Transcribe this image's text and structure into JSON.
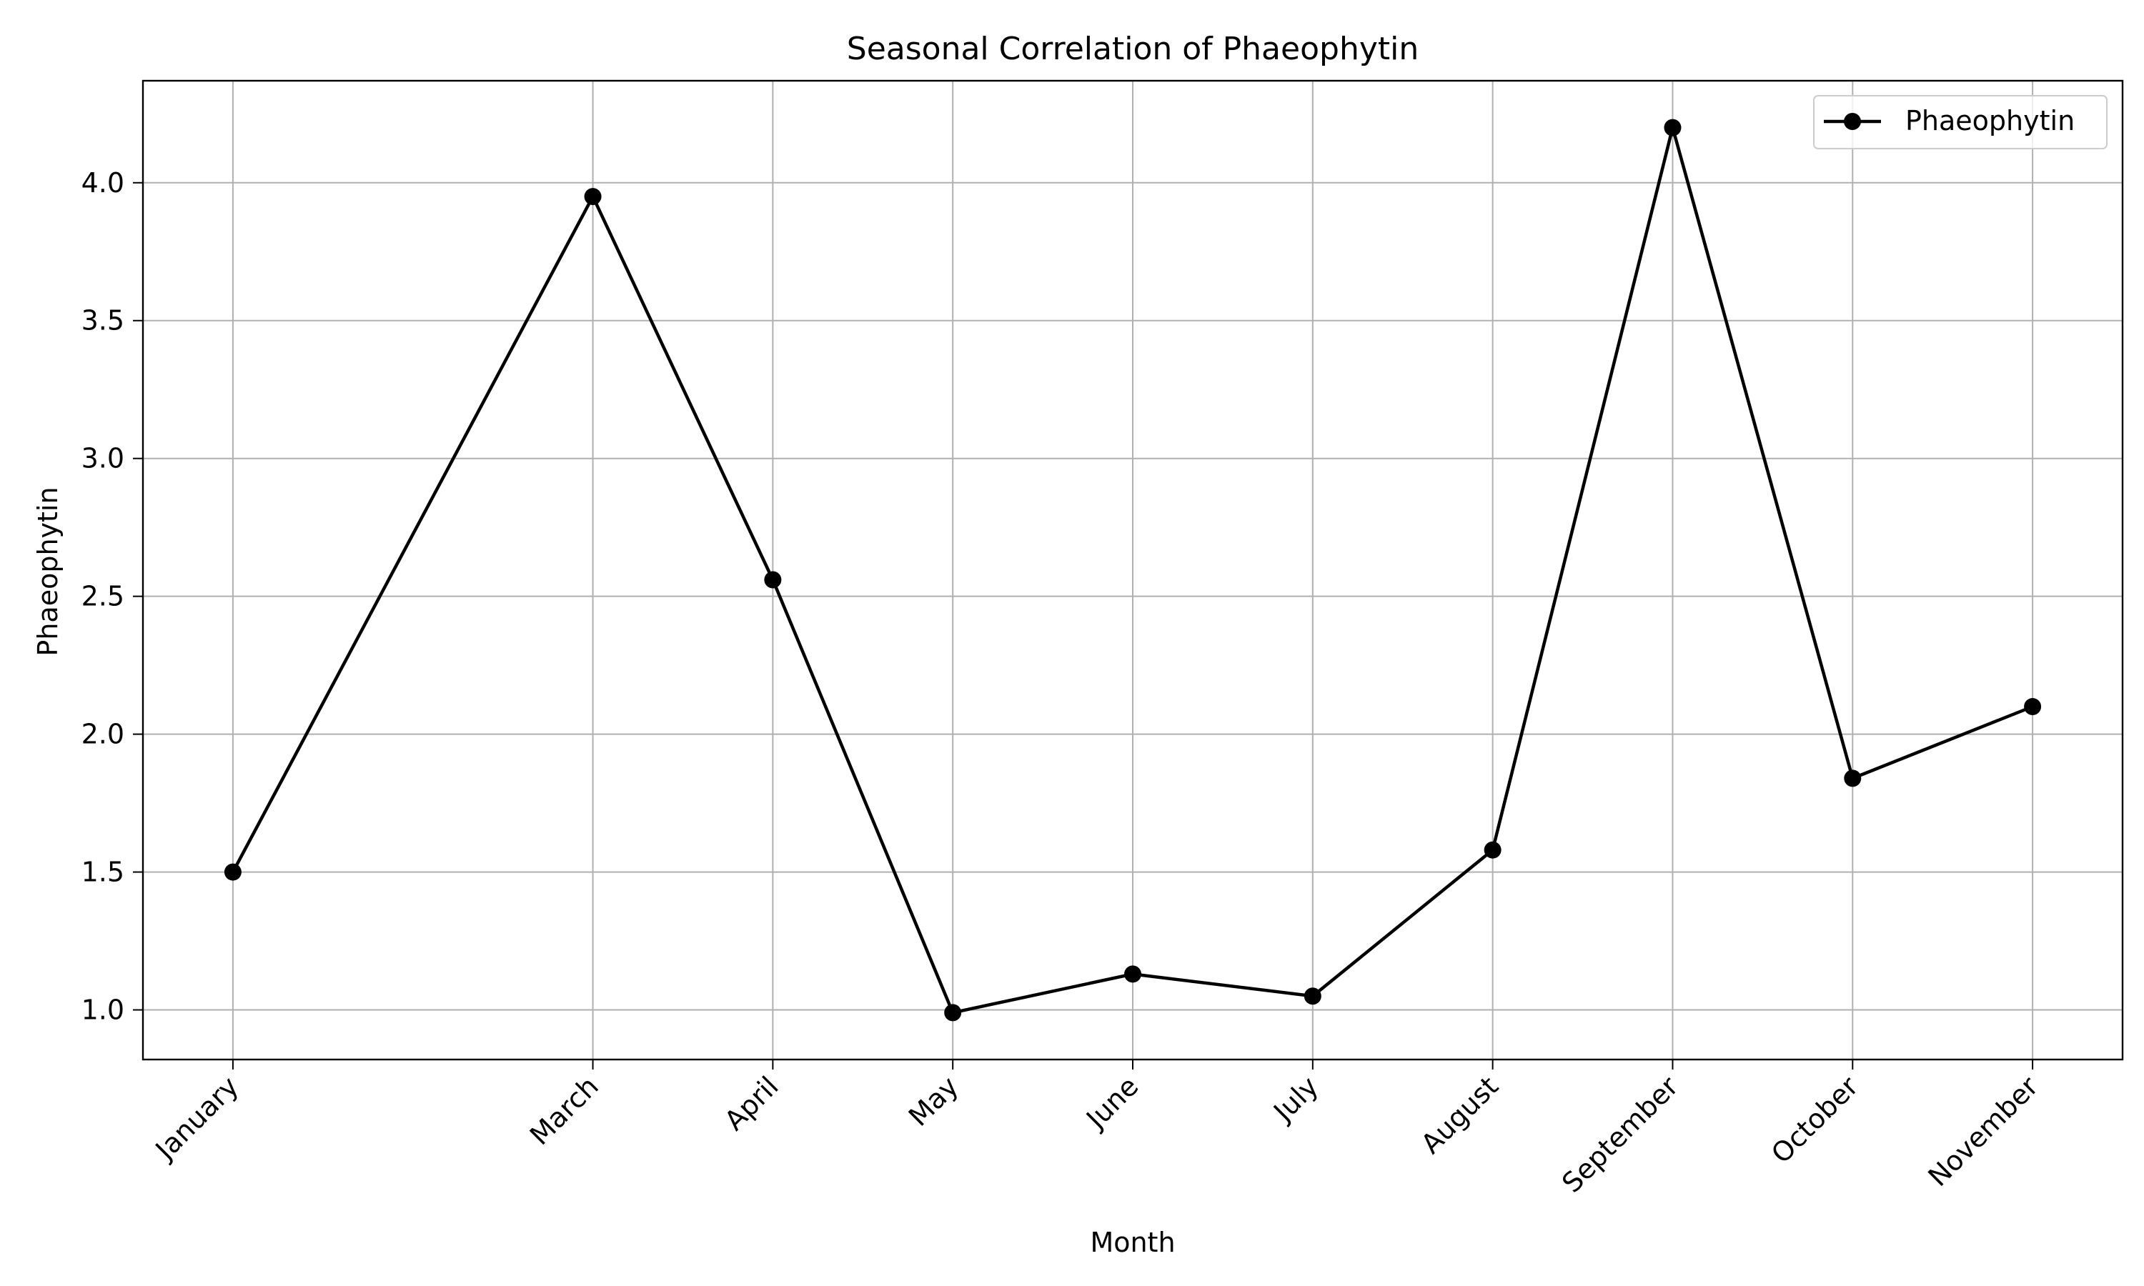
{
  "chart_data": {
    "type": "line",
    "title": "Seasonal Correlation of Phaeophytin",
    "xlabel": "Month",
    "ylabel": "Phaeophytin",
    "x": [
      "January",
      "March",
      "April",
      "May",
      "June",
      "July",
      "August",
      "September",
      "October",
      "November"
    ],
    "x_month_index": [
      1,
      3,
      4,
      5,
      6,
      7,
      8,
      9,
      10,
      11
    ],
    "series": [
      {
        "name": "Phaeophytin",
        "values": [
          1.5,
          3.95,
          2.56,
          0.99,
          1.13,
          1.05,
          1.58,
          4.2,
          1.84,
          2.1
        ],
        "color": "#000000",
        "marker": "circle"
      }
    ],
    "yticks": [
      "1.0",
      "1.5",
      "2.0",
      "2.5",
      "3.0",
      "3.5",
      "4.0"
    ],
    "ytick_values": [
      1.0,
      1.5,
      2.0,
      2.5,
      3.0,
      3.5,
      4.0
    ],
    "ylim": [
      0.82,
      4.37
    ],
    "xlim": [
      0.5,
      11.5
    ],
    "grid": true,
    "legend": {
      "position": "top-right",
      "entries": [
        "Phaeophytin"
      ]
    }
  }
}
